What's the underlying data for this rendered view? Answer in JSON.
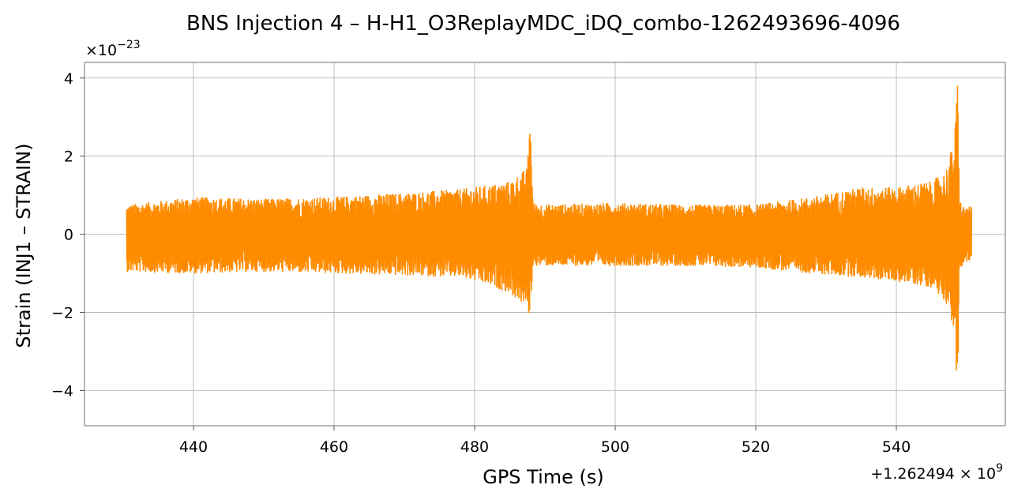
{
  "chart_data": {
    "type": "line",
    "title": "BNS Injection 4 – H-H1_O3ReplayMDC_iDQ_combo-1262493696-4096",
    "xlabel": "GPS Time (s)",
    "ylabel": "Strain (INJ1 – STRAIN)",
    "y_scale_label": "×10",
    "y_scale_exp": "−23",
    "x_offset_label": "+1.262494 × 10",
    "x_offset_exp": "9",
    "xlim": [
      424.5,
      555.5
    ],
    "ylim": [
      -4.9,
      4.4
    ],
    "x_ticks": [
      440,
      460,
      480,
      500,
      520,
      540
    ],
    "x_tick_labels": [
      "440",
      "460",
      "480",
      "500",
      "520",
      "540"
    ],
    "y_ticks": [
      -4,
      -2,
      0,
      2,
      4
    ],
    "y_tick_labels": [
      "−4",
      "−2",
      "0",
      "2",
      "4"
    ],
    "grid": true,
    "series": [
      {
        "color": "#ff8c00",
        "x_range": [
          430.5,
          550.7
        ],
        "envelope": {
          "x": [
            430.5,
            440,
            450,
            460,
            470,
            478,
            482,
            485,
            487.5,
            487.9,
            488.3,
            490,
            500,
            510,
            520,
            528,
            535,
            540,
            545,
            547,
            548.3,
            548.7,
            549.0,
            549.6,
            550.7
          ],
          "y_upper": [
            0.75,
            0.95,
            0.9,
            0.95,
            1.05,
            1.15,
            1.25,
            1.35,
            1.7,
            3.2,
            0.8,
            0.75,
            0.8,
            0.75,
            0.75,
            0.95,
            1.2,
            1.2,
            1.35,
            1.6,
            2.5,
            4.0,
            0.9,
            0.7,
            0.7
          ],
          "y_lower": [
            -0.95,
            -1.0,
            -0.95,
            -1.0,
            -1.05,
            -1.1,
            -1.3,
            -1.5,
            -1.9,
            -2.2,
            -0.8,
            -0.8,
            -0.8,
            -0.8,
            -0.85,
            -1.0,
            -1.1,
            -1.2,
            -1.35,
            -1.7,
            -2.5,
            -4.5,
            -1.0,
            -0.7,
            -0.7
          ]
        }
      }
    ]
  }
}
